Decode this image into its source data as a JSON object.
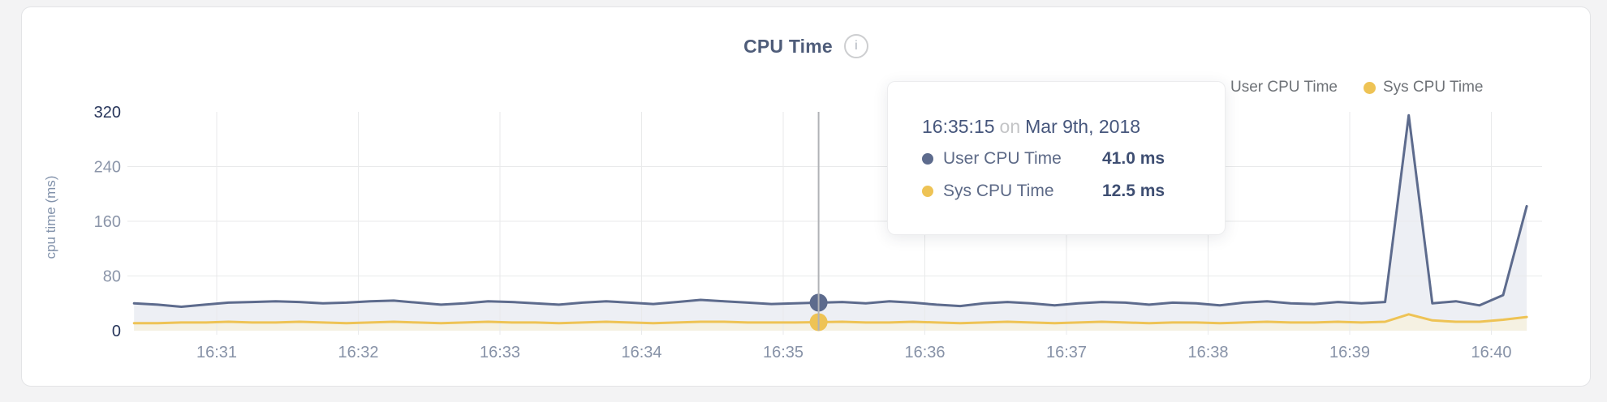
{
  "header": {
    "title": "CPU Time",
    "info_icon": "i"
  },
  "legend": {
    "items": [
      {
        "label": "User CPU Time",
        "color": "#5d6b8d"
      },
      {
        "label": "Sys CPU Time",
        "color": "#eec355"
      }
    ]
  },
  "tooltip": {
    "time": "16:35:15",
    "conjunction": "on",
    "date": "Mar 9th, 2018",
    "rows": [
      {
        "label": "User CPU Time",
        "value": "41.0 ms",
        "color": "#5d6b8d"
      },
      {
        "label": "Sys CPU Time",
        "value": "12.5 ms",
        "color": "#eec355"
      }
    ]
  },
  "chart_data": {
    "type": "area",
    "title": "CPU Time",
    "ylabel": "cpu time (ms)",
    "ylim": [
      0,
      320
    ],
    "y_ticks": [
      0,
      80,
      160,
      240,
      320
    ],
    "x_tick_labels": [
      "16:31",
      "16:32",
      "16:33",
      "16:34",
      "16:35",
      "16:36",
      "16:37",
      "16:38",
      "16:39",
      "16:40"
    ],
    "x_start_time": "16:30:25",
    "x_interval_seconds": 10,
    "grid": true,
    "legend_position": "top-right",
    "hover": {
      "index": 29,
      "time": "16:35:15",
      "date": "Mar 9th, 2018",
      "user_value_ms": 41.0,
      "sys_value_ms": 12.5
    },
    "series": [
      {
        "name": "User CPU Time",
        "color": "#5d6b8d",
        "fill": "#edeff4",
        "values": [
          40,
          38,
          35,
          38,
          41,
          42,
          43,
          42,
          40,
          41,
          43,
          44,
          41,
          38,
          40,
          43,
          42,
          40,
          38,
          41,
          43,
          41,
          39,
          42,
          45,
          43,
          41,
          39,
          40,
          41,
          42,
          40,
          43,
          41,
          38,
          36,
          40,
          42,
          40,
          37,
          40,
          42,
          41,
          38,
          41,
          40,
          37,
          41,
          43,
          40,
          39,
          42,
          40,
          42,
          315,
          40,
          43,
          37,
          52,
          182
        ]
      },
      {
        "name": "Sys CPU Time",
        "color": "#eec355",
        "fill": "#f5f1e2",
        "values": [
          11,
          11,
          12,
          12,
          13,
          12,
          12,
          13,
          12,
          11,
          12,
          13,
          12,
          11,
          12,
          13,
          12,
          12,
          11,
          12,
          13,
          12,
          11,
          12,
          13,
          13,
          12,
          12,
          12,
          12.5,
          13,
          12,
          12,
          13,
          12,
          11,
          12,
          13,
          12,
          11,
          12,
          13,
          12,
          11,
          12,
          12,
          11,
          12,
          13,
          12,
          12,
          13,
          12,
          13,
          24,
          15,
          13,
          13,
          16,
          20
        ]
      }
    ]
  }
}
